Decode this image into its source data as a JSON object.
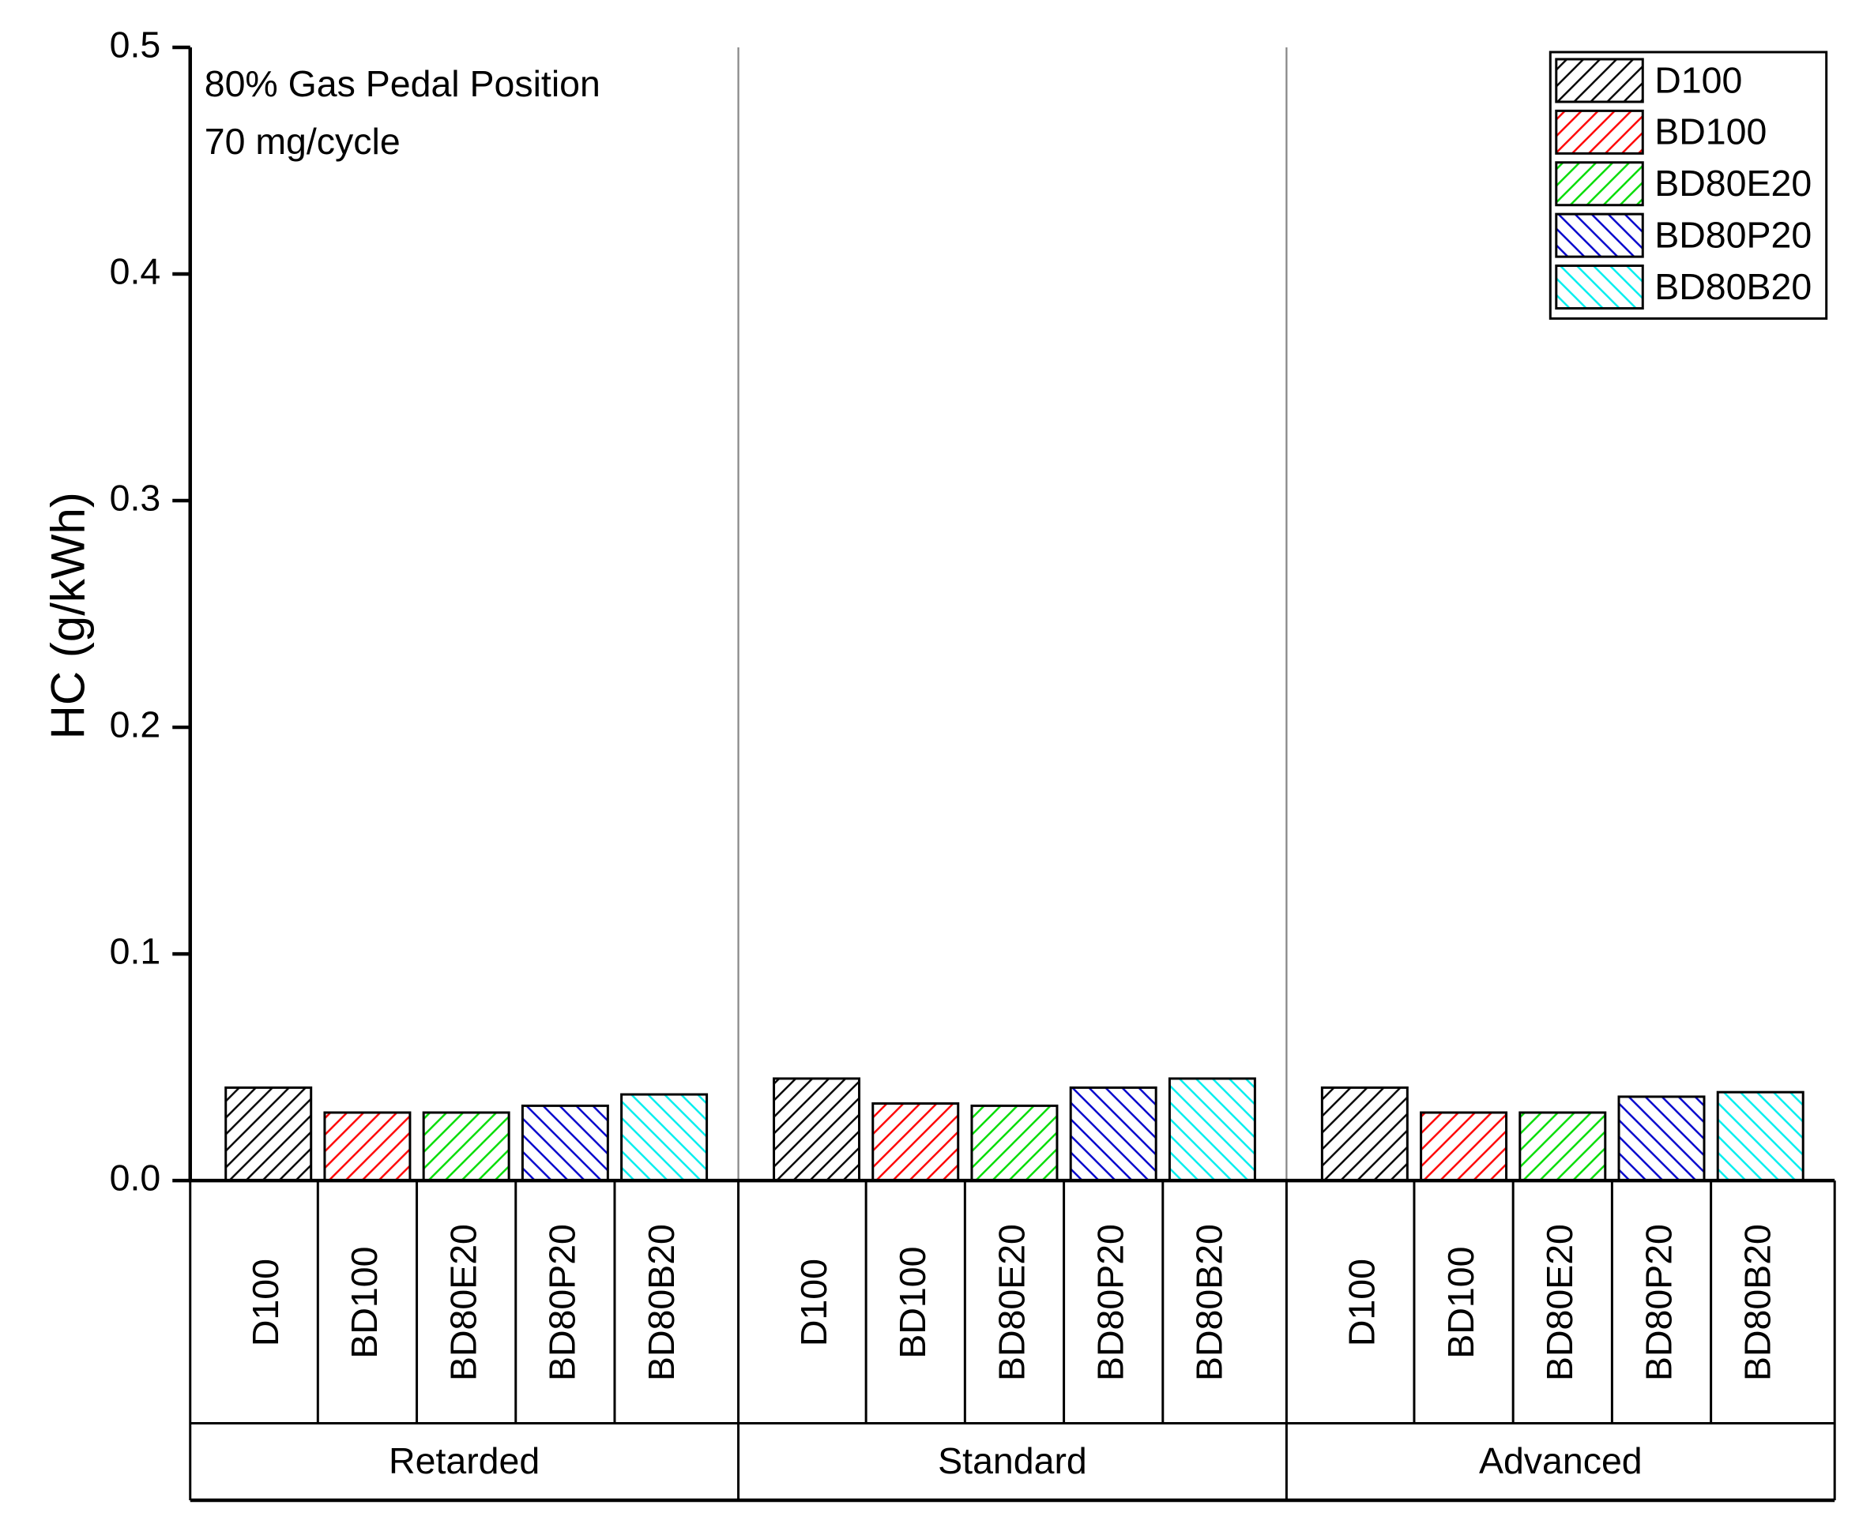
{
  "chart_data": {
    "type": "bar",
    "annotations": [
      "80% Gas Pedal Position",
      "70 mg/cycle"
    ],
    "y_label": "HC (g/kWh)",
    "categories": [
      "Retarded",
      "Standard",
      "Advanced"
    ],
    "series": [
      {
        "name": "D100",
        "color": "#000000",
        "hatch": "/",
        "values": [
          0.041,
          0.045,
          0.041
        ]
      },
      {
        "name": "BD100",
        "color": "#ff0000",
        "hatch": "/",
        "values": [
          0.03,
          0.034,
          0.03
        ]
      },
      {
        "name": "BD80E20",
        "color": "#00dd00",
        "hatch": "/",
        "values": [
          0.03,
          0.033,
          0.03
        ]
      },
      {
        "name": "BD80P20",
        "color": "#0000cc",
        "hatch": "\\",
        "values": [
          0.033,
          0.041,
          0.037
        ]
      },
      {
        "name": "BD80B20",
        "color": "#00eeee",
        "hatch": "\\",
        "values": [
          0.038,
          0.045,
          0.039
        ]
      }
    ],
    "ylim": [
      0,
      0.5
    ],
    "yticks": [
      {
        "value": 0,
        "label": "0.0"
      },
      0.1,
      0.2,
      0.3,
      0.4,
      0.5
    ],
    "legend": "upper right"
  }
}
